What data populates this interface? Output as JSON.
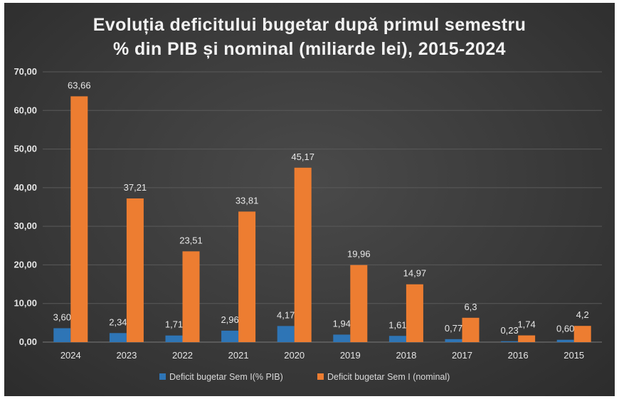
{
  "chart_data": {
    "type": "bar",
    "title_line1": "Evoluția deficitului bugetar după primul semestru",
    "title_line2": "% din PIB și nominal (miliarde lei), 2015-2024",
    "categories": [
      "2024",
      "2023",
      "2022",
      "2021",
      "2020",
      "2019",
      "2018",
      "2017",
      "2016",
      "2015"
    ],
    "series": [
      {
        "name": "Deficit bugetar Sem I(% PIB)",
        "color": "#2e75b6",
        "values": [
          3.6,
          2.34,
          1.71,
          2.96,
          4.17,
          1.94,
          1.61,
          0.77,
          0.23,
          0.6
        ],
        "labels": [
          "3,60",
          "2,34",
          "1,71",
          "2,96",
          "4,17",
          "1,94",
          "1,61",
          "0,77",
          "0,23",
          "0,60"
        ]
      },
      {
        "name": "Deficit bugetar Sem I (nominal)",
        "color": "#ed7d31",
        "values": [
          63.66,
          37.21,
          23.51,
          33.81,
          45.17,
          19.96,
          14.97,
          6.3,
          1.74,
          4.2
        ],
        "labels": [
          "63,66",
          "37,21",
          "23,51",
          "33,81",
          "45,17",
          "19,96",
          "14,97",
          "6,3",
          "1,74",
          "4,2"
        ]
      }
    ],
    "ylim": [
      0,
      70
    ],
    "yticks": [
      0,
      10,
      20,
      30,
      40,
      50,
      60,
      70
    ],
    "ytick_labels": [
      "0,00",
      "10,00",
      "20,00",
      "30,00",
      "40,00",
      "50,00",
      "60,00",
      "70,00"
    ],
    "grid": true,
    "legend_position": "bottom"
  }
}
